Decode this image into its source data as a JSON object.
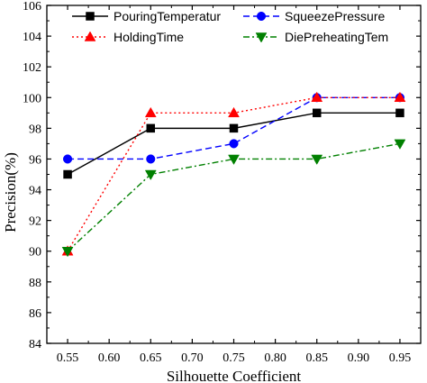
{
  "chart_data": {
    "type": "line",
    "title": "",
    "xlabel": "Silhouette Coefficient",
    "ylabel": "Precision(%)",
    "xlim": [
      0.525,
      0.975
    ],
    "ylim": [
      84,
      106
    ],
    "x_ticks": [
      "0.55",
      "0.60",
      "0.65",
      "0.70",
      "0.75",
      "0.80",
      "0.85",
      "0.90",
      "0.95"
    ],
    "y_ticks": [
      "84",
      "86",
      "88",
      "90",
      "92",
      "94",
      "96",
      "98",
      "100",
      "102",
      "104",
      "106"
    ],
    "x": [
      0.55,
      0.65,
      0.75,
      0.85,
      0.95
    ],
    "legend_position": "top",
    "grid": false,
    "series": [
      {
        "name": "PouringTemperatur",
        "values": [
          95,
          98,
          98,
          99,
          99
        ],
        "color": "#000000",
        "marker": "square",
        "line_style": "solid"
      },
      {
        "name": "SqueezePressure",
        "values": [
          96,
          96,
          97,
          100,
          100
        ],
        "color": "#0000ff",
        "marker": "circle",
        "line_style": "dash"
      },
      {
        "name": "HoldingTime",
        "values": [
          90,
          99,
          99,
          100,
          100
        ],
        "color": "#ff0000",
        "marker": "triangle-up",
        "line_style": "dot"
      },
      {
        "name": "DiePreheatingTem",
        "values": [
          90,
          95,
          96,
          96,
          97
        ],
        "color": "#008000",
        "marker": "triangle-down",
        "line_style": "dash-dot"
      }
    ]
  }
}
